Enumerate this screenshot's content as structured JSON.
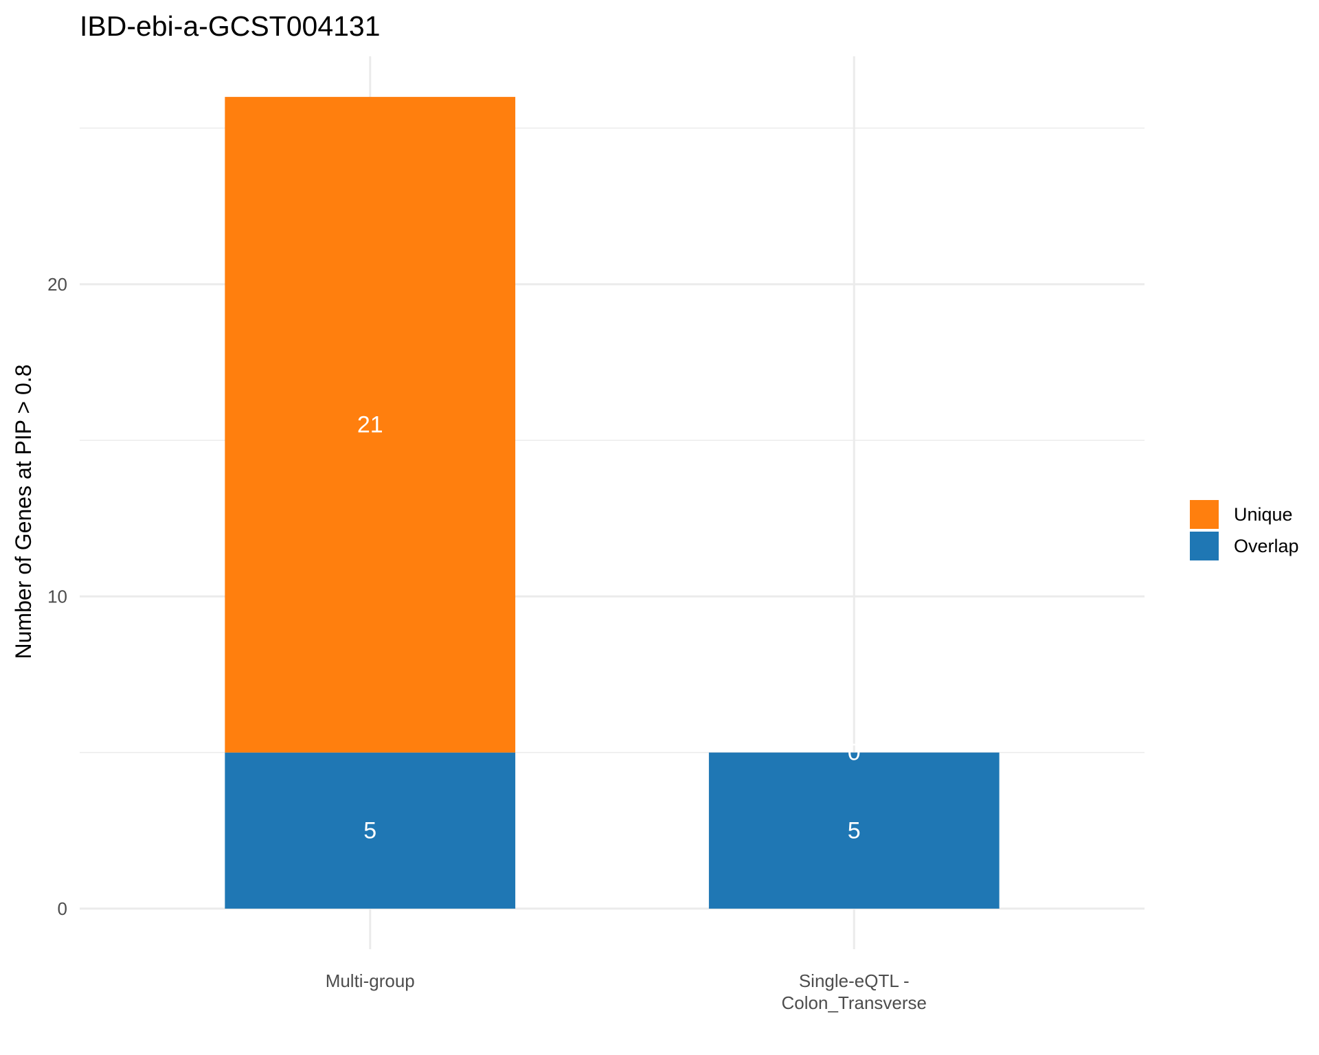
{
  "chart_data": {
    "type": "bar",
    "stacked": true,
    "title": "IBD-ebi-a-GCST004131",
    "xlabel": "",
    "ylabel": "Number of Genes at PIP > 0.8",
    "categories": [
      [
        "Multi-group"
      ],
      [
        "Single-eQTL -",
        "Colon_Transverse"
      ]
    ],
    "series": [
      {
        "name": "Overlap",
        "color": "#1f77b4",
        "values": [
          5,
          5
        ]
      },
      {
        "name": "Unique",
        "color": "#ff7f0e",
        "values": [
          21,
          0
        ]
      }
    ],
    "ylim": [
      -1.3,
      27.3
    ],
    "yticks": [
      0,
      10,
      20
    ],
    "grid": true,
    "legend": {
      "position": "right",
      "order": [
        "Unique",
        "Overlap"
      ]
    }
  }
}
